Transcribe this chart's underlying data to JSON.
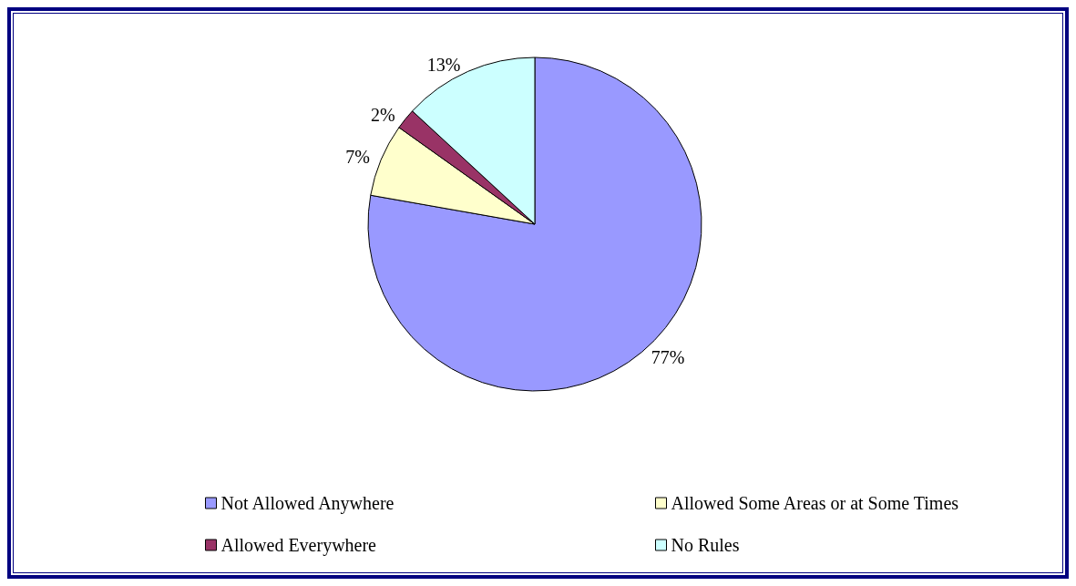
{
  "chart_data": {
    "type": "pie",
    "categories": [
      "Not Allowed Anywhere",
      "Allowed Some Areas or at Some Times",
      "Allowed Everywhere",
      "No Rules"
    ],
    "values": [
      77,
      7,
      2,
      13
    ],
    "colors": [
      "#9999ff",
      "#ffffcc",
      "#993366",
      "#ccffff"
    ],
    "value_labels": [
      "77%",
      "7%",
      "2%",
      "13%"
    ],
    "legend": "bottom"
  }
}
